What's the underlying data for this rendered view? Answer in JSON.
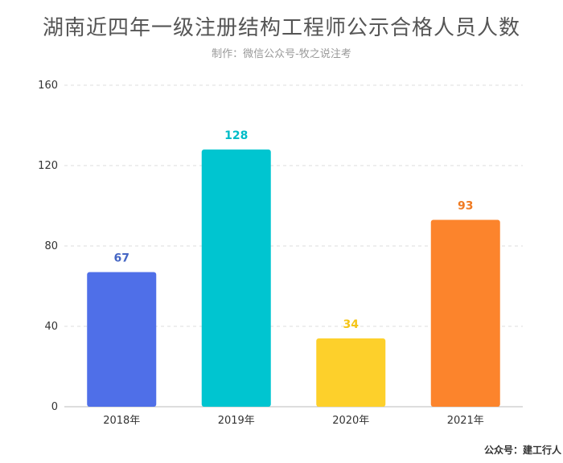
{
  "title": "湖南近四年一级注册结构工程师公示合格人员人数",
  "subtitle": "制作：微信公众号-牧之说注考",
  "watermark": "公众号：建工行人",
  "chart_data": {
    "type": "bar",
    "title": "湖南近四年一级注册结构工程师公示合格人员人数",
    "subtitle": "制作：微信公众号-牧之说注考",
    "categories": [
      "2018年",
      "2019年",
      "2020年",
      "2021年"
    ],
    "values": [
      67,
      128,
      34,
      93
    ],
    "colors": [
      "#4f6fe8",
      "#00c5d0",
      "#fdd02b",
      "#fc842c"
    ],
    "label_colors": [
      "#4566c4",
      "#00bcc8",
      "#f5c518",
      "#f07b22"
    ],
    "ylim": [
      0,
      160
    ],
    "yticks": [
      0,
      40,
      80,
      120,
      160
    ],
    "grid": true,
    "xlabel": "",
    "ylabel": ""
  }
}
